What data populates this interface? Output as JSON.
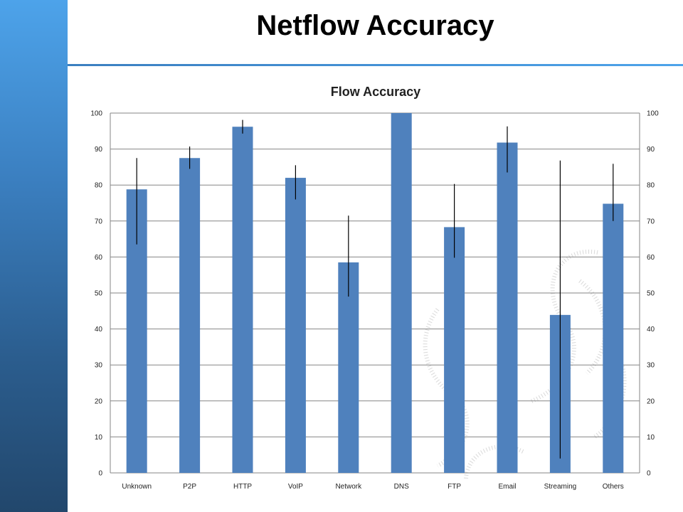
{
  "slide": {
    "title": "Netflow Accuracy"
  },
  "colors": {
    "sidebar_top": "#4da3ea",
    "sidebar_bottom": "#22476c",
    "bar": "#4f81bd",
    "error_bar": "#000000",
    "gridline": "#868686"
  },
  "chart_data": {
    "type": "bar",
    "title": "Flow Accuracy",
    "xlabel": "",
    "ylabel": "",
    "ylim": [
      0,
      100
    ],
    "yticks": [
      0,
      10,
      20,
      30,
      40,
      50,
      60,
      70,
      80,
      90,
      100
    ],
    "secondary_axis": true,
    "grid": true,
    "categories": [
      "Unknown",
      "P2P",
      "HTTP",
      "VoIP",
      "Network",
      "DNS",
      "FTP",
      "Email",
      "Streaming",
      "Others"
    ],
    "series": [
      {
        "values": [
          78.8,
          87.5,
          96.2,
          82.0,
          58.5,
          100,
          68.3,
          91.8,
          43.9,
          74.8
        ],
        "error_low": [
          63.5,
          84.5,
          94.3,
          76.0,
          49.0,
          100,
          59.8,
          83.5,
          4.0,
          70.0
        ],
        "error_high": [
          87.5,
          90.7,
          98.1,
          85.5,
          71.5,
          100,
          80.3,
          96.3,
          86.8,
          85.9
        ]
      }
    ]
  }
}
